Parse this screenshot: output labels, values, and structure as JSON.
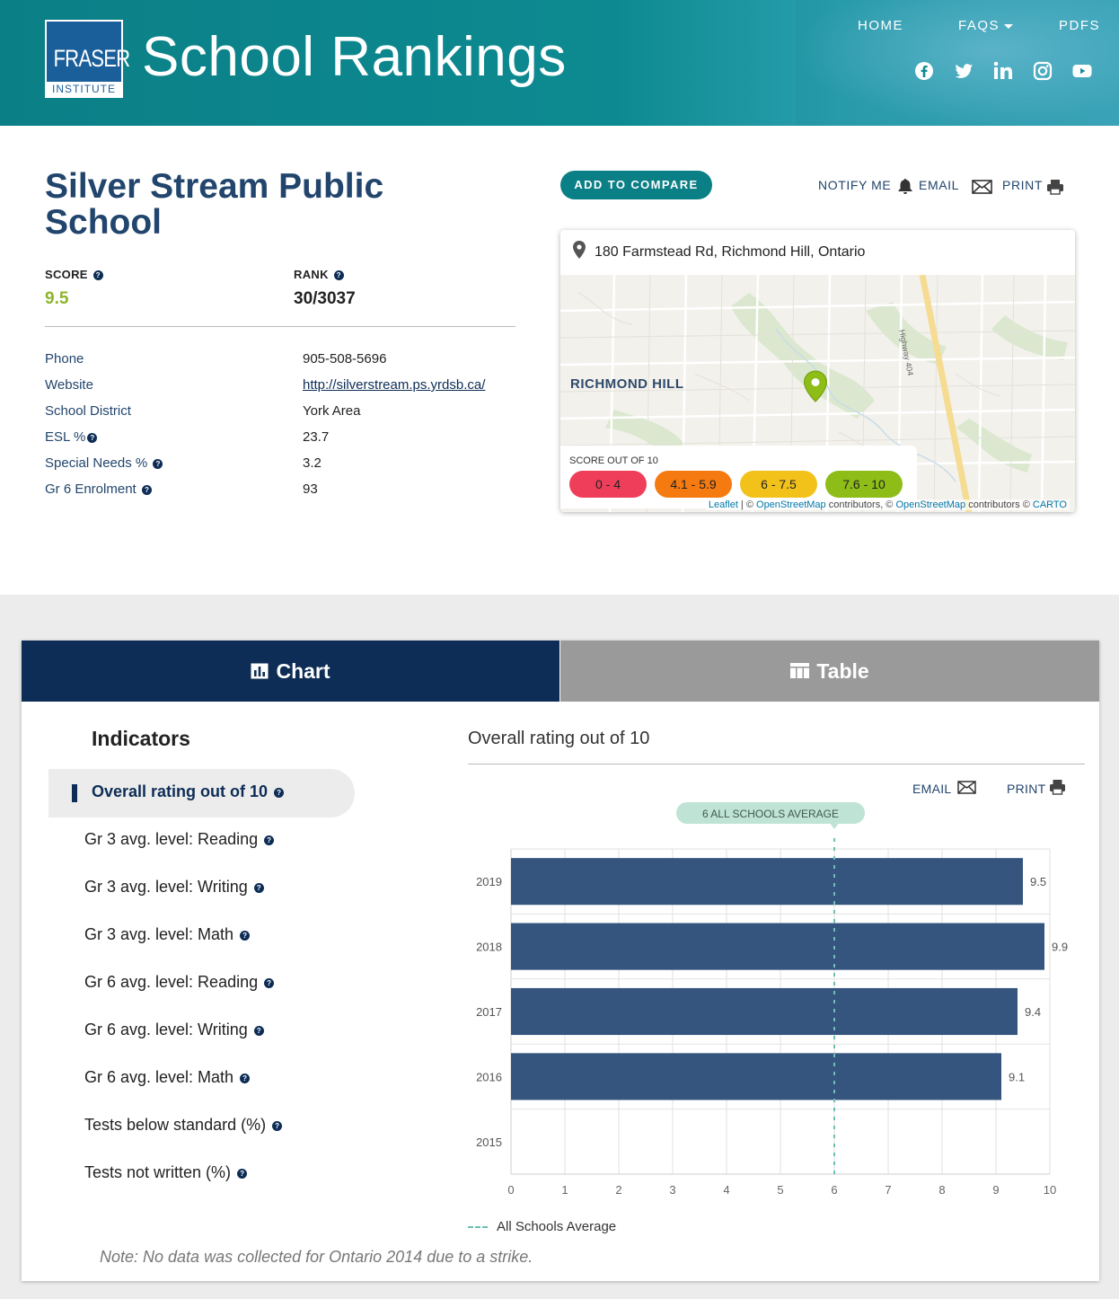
{
  "header": {
    "logo_main": "FRASER",
    "logo_sub": "INSTITUTE",
    "site_title": "School Rankings",
    "nav": [
      "HOME",
      "FAQS",
      "PDFS"
    ],
    "social_icons": [
      "facebook-icon",
      "twitter-icon",
      "linkedin-icon",
      "instagram-icon",
      "youtube-icon"
    ]
  },
  "school": {
    "name": "Silver Stream Public School",
    "score_label": "SCORE",
    "score": "9.5",
    "rank_label": "RANK",
    "rank": "30/3037",
    "details": [
      {
        "label": "Phone",
        "value": "905-508-5696",
        "help": false,
        "link": false
      },
      {
        "label": "Website",
        "value": "http://silverstream.ps.yrdsb.ca/",
        "help": false,
        "link": true
      },
      {
        "label": "School District",
        "value": "York Area",
        "help": false,
        "link": false
      },
      {
        "label": "ESL %",
        "value": "23.7",
        "help": true,
        "link": false
      },
      {
        "label": "Special Needs %",
        "value": "3.2",
        "help": true,
        "link": false
      },
      {
        "label": "Gr 6 Enrolment",
        "value": "93",
        "help": true,
        "link": false
      }
    ]
  },
  "actions": {
    "compare": "ADD TO COMPARE",
    "notify": "NOTIFY ME",
    "email": "EMAIL",
    "print": "PRINT"
  },
  "map": {
    "address": "180 Farmstead Rd, Richmond Hill, Ontario",
    "area_label": "RICHMOND HILL",
    "highway_label": "Highway 404",
    "legend_title": "SCORE OUT OF 10",
    "legend": [
      {
        "label": "0 - 4",
        "color": "#ee3e5a"
      },
      {
        "label": "4.1 - 5.9",
        "color": "#f57a10"
      },
      {
        "label": "6 - 7.5",
        "color": "#f2c21a"
      },
      {
        "label": "7.6 - 10",
        "color": "#8dbd16"
      }
    ],
    "attribution": {
      "leaflet": "Leaflet",
      "sep1": " | © ",
      "osm1": "OpenStreetMap",
      "mid": " contributors, © ",
      "osm2": "OpenStreetMap",
      "mid2": " contributors © ",
      "carto": "CARTO"
    }
  },
  "tabs": {
    "chart": "Chart",
    "table": "Table"
  },
  "indicators": {
    "title": "Indicators",
    "active": "Overall rating out of 10",
    "items": [
      "Gr 3 avg. level: Reading",
      "Gr 3 avg. level: Writing",
      "Gr 3 avg. level: Math",
      "Gr 6 avg. level: Reading",
      "Gr 6 avg. level: Writing",
      "Gr 6 avg. level: Math",
      "Tests below standard (%)",
      "Tests not written (%)"
    ]
  },
  "chart_panel": {
    "title": "Overall rating out of 10",
    "email": "EMAIL",
    "print": "PRINT",
    "legend_label": "All Schools Average",
    "note": "Note: No data was collected for Ontario 2014 due to a strike."
  },
  "chart_data": {
    "type": "bar",
    "orientation": "horizontal",
    "categories": [
      "2019",
      "2018",
      "2017",
      "2016",
      "2015"
    ],
    "values": [
      9.5,
      9.9,
      9.4,
      9.1,
      null
    ],
    "value_labels": [
      "9.5",
      "9.9",
      "9.4",
      "9.1",
      ""
    ],
    "xlim": [
      0,
      10
    ],
    "xticks": [
      "0",
      "1",
      "2",
      "3",
      "4",
      "5",
      "6",
      "7",
      "8",
      "9",
      "10"
    ],
    "bar_color": "#35557f",
    "average": {
      "value": 6,
      "label": "6 ALL SCHOOLS AVERAGE",
      "color": "#6cc0b4"
    },
    "grid": true
  }
}
